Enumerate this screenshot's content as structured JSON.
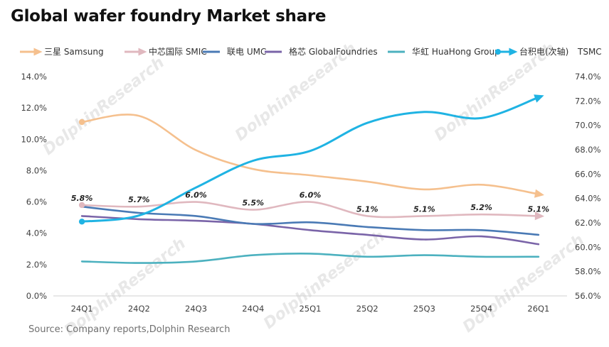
{
  "title": "Global wafer foundry Market share",
  "source": "Source: Company  reports,Dolphin  Research",
  "watermark": "DolphinResearch",
  "chart_data": {
    "type": "line",
    "categories": [
      "24Q1",
      "24Q2",
      "24Q3",
      "24Q4",
      "25Q1",
      "25Q2",
      "25Q3",
      "25Q4",
      "26Q1"
    ],
    "y_left": {
      "min": 0,
      "max": 14,
      "step": 2,
      "tick_labels": [
        "0.0%",
        "2.0%",
        "4.0%",
        "6.0%",
        "8.0%",
        "10.0%",
        "12.0%",
        "14.0%"
      ]
    },
    "y_right": {
      "min": 56,
      "max": 74,
      "step": 2,
      "label": "TSMC",
      "tick_labels": [
        "56.0%",
        "58.0%",
        "60.0%",
        "62.0%",
        "64.0%",
        "66.0%",
        "68.0%",
        "70.0%",
        "72.0%",
        "74.0%"
      ]
    },
    "grid": false,
    "legend_position": "top",
    "series": [
      {
        "name": "三星 Samsung",
        "axis": "left",
        "color": "#f5c08e",
        "marker": "arrow",
        "values": [
          11.1,
          11.5,
          9.3,
          8.1,
          7.7,
          7.3,
          6.8,
          7.1,
          6.5
        ]
      },
      {
        "name": "中芯国际 SMIC",
        "axis": "left",
        "color": "#e0b8bf",
        "marker": "arrow",
        "values": [
          5.8,
          5.7,
          6.0,
          5.5,
          6.0,
          5.1,
          5.1,
          5.2,
          5.1
        ],
        "data_labels": [
          "5.8%",
          "5.7%",
          "6.0%",
          "5.5%",
          "6.0%",
          "5.1%",
          "5.1%",
          "5.2%",
          "5.1%"
        ]
      },
      {
        "name": "联电 UMC",
        "axis": "left",
        "color": "#4a7ab5",
        "marker": "none",
        "values": [
          5.7,
          5.3,
          5.1,
          4.6,
          4.7,
          4.4,
          4.2,
          4.2,
          3.9
        ]
      },
      {
        "name": "格芯 GlobalFoundries",
        "axis": "left",
        "color": "#7a64a8",
        "marker": "none",
        "values": [
          5.1,
          4.9,
          4.8,
          4.6,
          4.2,
          3.9,
          3.6,
          3.8,
          3.3
        ]
      },
      {
        "name": "华虹 HuaHong Group",
        "axis": "left",
        "color": "#4cb1bf",
        "marker": "none",
        "values": [
          2.2,
          2.1,
          2.2,
          2.6,
          2.7,
          2.5,
          2.6,
          2.5,
          2.5
        ]
      },
      {
        "name": "台积电(次轴)",
        "axis": "right",
        "color": "#1fb3e3",
        "marker": "arrow",
        "values": [
          62.1,
          62.6,
          64.9,
          67.1,
          67.9,
          70.2,
          71.1,
          70.6,
          72.3
        ]
      }
    ]
  }
}
